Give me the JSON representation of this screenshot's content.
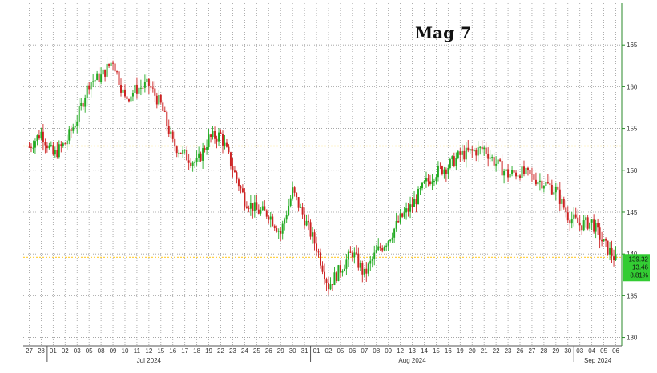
{
  "chart_data": {
    "type": "candlestick",
    "title": "Mag 7",
    "xlabel": "",
    "ylabel": "",
    "ylim": [
      129,
      170
    ],
    "y_ticks": [
      130,
      135,
      140,
      145,
      150,
      155,
      160,
      165
    ],
    "x_ticks": [
      "27",
      "28",
      "01",
      "02",
      "03",
      "05",
      "08",
      "09",
      "10",
      "11",
      "12",
      "15",
      "16",
      "17",
      "18",
      "19",
      "22",
      "23",
      "24",
      "25",
      "26",
      "29",
      "30",
      "31",
      "01",
      "02",
      "05",
      "06",
      "07",
      "08",
      "09",
      "12",
      "13",
      "14",
      "15",
      "16",
      "19",
      "20",
      "21",
      "22",
      "23",
      "26",
      "27",
      "28",
      "29",
      "30",
      "03",
      "04",
      "05",
      "06"
    ],
    "month_labels": [
      {
        "label": "Jul 2024",
        "tick_index": 10
      },
      {
        "label": "Aug 2024",
        "tick_index": 32
      },
      {
        "label": "Sep 2024",
        "tick_index": 47.5
      }
    ],
    "month_separators_after_tick": [
      1,
      23,
      45
    ],
    "daily_close": [
      152.8,
      154.5,
      151.8,
      153.2,
      156.2,
      160.5,
      161.2,
      163.2,
      158.5,
      159.8,
      160.2,
      157.8,
      153.2,
      151.8,
      150.8,
      153.8,
      154.2,
      150.2,
      146.5,
      145.2,
      144.8,
      142.5,
      147.5,
      144.2,
      140.8,
      136.2,
      138.2,
      140.2,
      137.5,
      140.2,
      141.8,
      144.2,
      145.8,
      148.2,
      149.8,
      150.5,
      151.8,
      152.2,
      152.6,
      150.8,
      149.5,
      149.8,
      149.2,
      148.5,
      147.6,
      144.6,
      143.5,
      143.8,
      141.2,
      139.32
    ],
    "reference_lines": [
      {
        "value": 152.9,
        "color": "#ffd24a"
      },
      {
        "value": 139.6,
        "color": "#ffd24a"
      }
    ],
    "last_value_badge": {
      "lines": [
        "139.32",
        "13.46",
        "8.81%"
      ],
      "color": "#33cc33"
    },
    "colors": {
      "up": "#22aa22",
      "down": "#cc2222",
      "grid": "#9a9a9a",
      "axis": "#2a8a2a"
    },
    "grid": true
  }
}
